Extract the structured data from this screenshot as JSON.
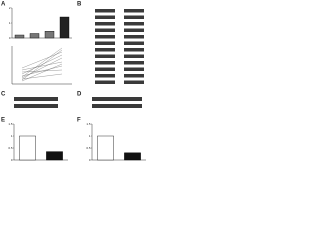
{
  "panels": [
    "A",
    "B",
    "C",
    "D",
    "E",
    "F"
  ],
  "chart_data": [
    {
      "type": "bar",
      "categories": [
        null,
        null,
        null,
        null
      ],
      "values": [
        0.2,
        0.3,
        0.45,
        1.4
      ],
      "colors": [
        "#777777",
        "#777777",
        "#777777",
        "#222222"
      ],
      "ylim": [
        0,
        2
      ],
      "yticks": [
        0,
        1,
        2
      ]
    },
    {
      "type": "bar",
      "categories": [
        null,
        null
      ],
      "values": [
        1.0,
        0.35
      ],
      "colors": [
        "#ffffff",
        "#111111"
      ],
      "ylim": [
        0,
        1.5
      ],
      "yticks": [
        0,
        0.5,
        1,
        1.5
      ]
    },
    {
      "type": "bar",
      "categories": [
        null,
        null
      ],
      "values": [
        1.0,
        0.3
      ],
      "colors": [
        "#ffffff",
        "#111111"
      ],
      "ylim": [
        0,
        1.5
      ],
      "yticks": [
        0,
        0.5,
        1,
        1.5
      ]
    }
  ]
}
